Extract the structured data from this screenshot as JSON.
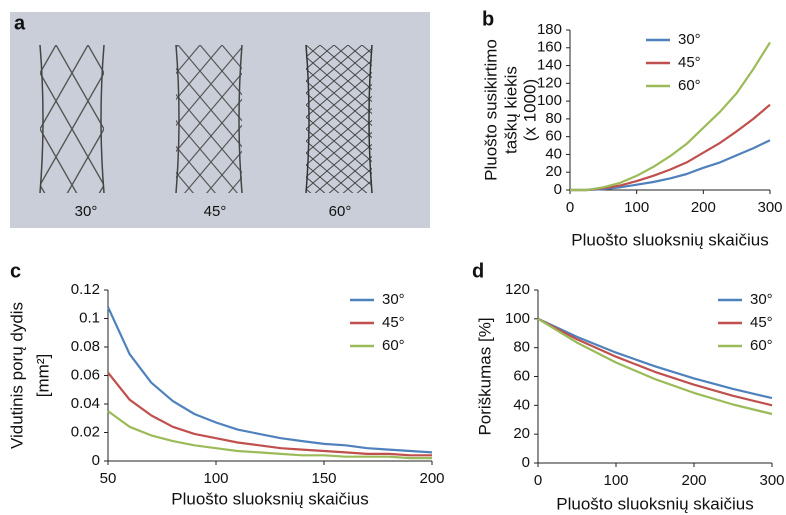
{
  "chart_data": [
    {
      "type": "illustration",
      "panel": "a",
      "labels": [
        "30°",
        "45°",
        "60°"
      ]
    },
    {
      "type": "line",
      "panel": "b",
      "x": [
        0,
        25,
        50,
        75,
        100,
        125,
        150,
        175,
        200,
        225,
        250,
        275,
        300
      ],
      "series": [
        {
          "name": "30°",
          "color": "#4f81bd",
          "values": [
            0,
            0,
            1,
            3,
            6,
            9,
            13,
            18,
            25,
            31,
            39,
            47,
            56
          ]
        },
        {
          "name": "45°",
          "color": "#c0504d",
          "values": [
            0,
            0,
            2,
            5,
            10,
            16,
            23,
            31,
            42,
            53,
            66,
            80,
            96
          ]
        },
        {
          "name": "60°",
          "color": "#9bbb59",
          "values": [
            0,
            0,
            3,
            8,
            16,
            26,
            38,
            52,
            70,
            88,
            109,
            136,
            166
          ]
        }
      ],
      "xlim": [
        0,
        300
      ],
      "xticks": [
        0,
        100,
        200,
        300
      ],
      "ylim": [
        0,
        180
      ],
      "yticks": [
        0,
        20,
        40,
        60,
        80,
        100,
        120,
        140,
        160,
        180
      ],
      "x_label": "Pluošto sluoksnių skaičius",
      "y_label": [
        "Pluošto susikirtimo",
        "taškų kiekis",
        "(x 1000)"
      ],
      "grid": false,
      "legend": "upper right"
    },
    {
      "type": "line",
      "panel": "c",
      "x": [
        50,
        60,
        70,
        80,
        90,
        100,
        110,
        120,
        130,
        140,
        150,
        160,
        170,
        180,
        190,
        200
      ],
      "series": [
        {
          "name": "30°",
          "color": "#4f81bd",
          "values": [
            0.108,
            0.075,
            0.055,
            0.042,
            0.033,
            0.027,
            0.022,
            0.019,
            0.016,
            0.014,
            0.012,
            0.011,
            0.009,
            0.008,
            0.007,
            0.006
          ]
        },
        {
          "name": "45°",
          "color": "#c0504d",
          "values": [
            0.062,
            0.043,
            0.032,
            0.024,
            0.019,
            0.016,
            0.013,
            0.011,
            0.009,
            0.008,
            0.007,
            0.006,
            0.005,
            0.005,
            0.004,
            0.004
          ]
        },
        {
          "name": "60°",
          "color": "#9bbb59",
          "values": [
            0.035,
            0.024,
            0.018,
            0.014,
            0.011,
            0.009,
            0.007,
            0.006,
            0.005,
            0.004,
            0.004,
            0.003,
            0.003,
            0.003,
            0.002,
            0.002
          ]
        }
      ],
      "xlim": [
        50,
        200
      ],
      "xticks": [
        50,
        100,
        150,
        200
      ],
      "ylim": [
        0,
        0.12
      ],
      "yticks": [
        0,
        0.02,
        0.04,
        0.06,
        0.08,
        0.1,
        0.12
      ],
      "x_label": "Pluošto sluoksnių skaičius",
      "y_label": [
        "Vidutinis porų dydis",
        "[mm²]"
      ],
      "grid": false,
      "legend": "upper right"
    },
    {
      "type": "line",
      "panel": "d",
      "x": [
        0,
        50,
        100,
        150,
        200,
        250,
        300
      ],
      "series": [
        {
          "name": "30°",
          "color": "#4f81bd",
          "values": [
            100,
            87.5,
            76.6,
            67.1,
            58.7,
            51.4,
            45
          ]
        },
        {
          "name": "45°",
          "color": "#c0504d",
          "values": [
            100,
            85.8,
            73.7,
            63.2,
            54.3,
            46.6,
            40
          ]
        },
        {
          "name": "60°",
          "color": "#9bbb59",
          "values": [
            100,
            83.5,
            69.7,
            58.2,
            48.6,
            40.6,
            34
          ]
        }
      ],
      "xlim": [
        0,
        300
      ],
      "xticks": [
        0,
        100,
        200,
        300
      ],
      "ylim": [
        0,
        120
      ],
      "yticks": [
        0,
        20,
        40,
        60,
        80,
        100,
        120
      ],
      "x_label": "Pluošto sluoksnių skaičius",
      "y_label": [
        "Poriškumas [%]"
      ],
      "grid": false,
      "legend": "upper right"
    }
  ]
}
